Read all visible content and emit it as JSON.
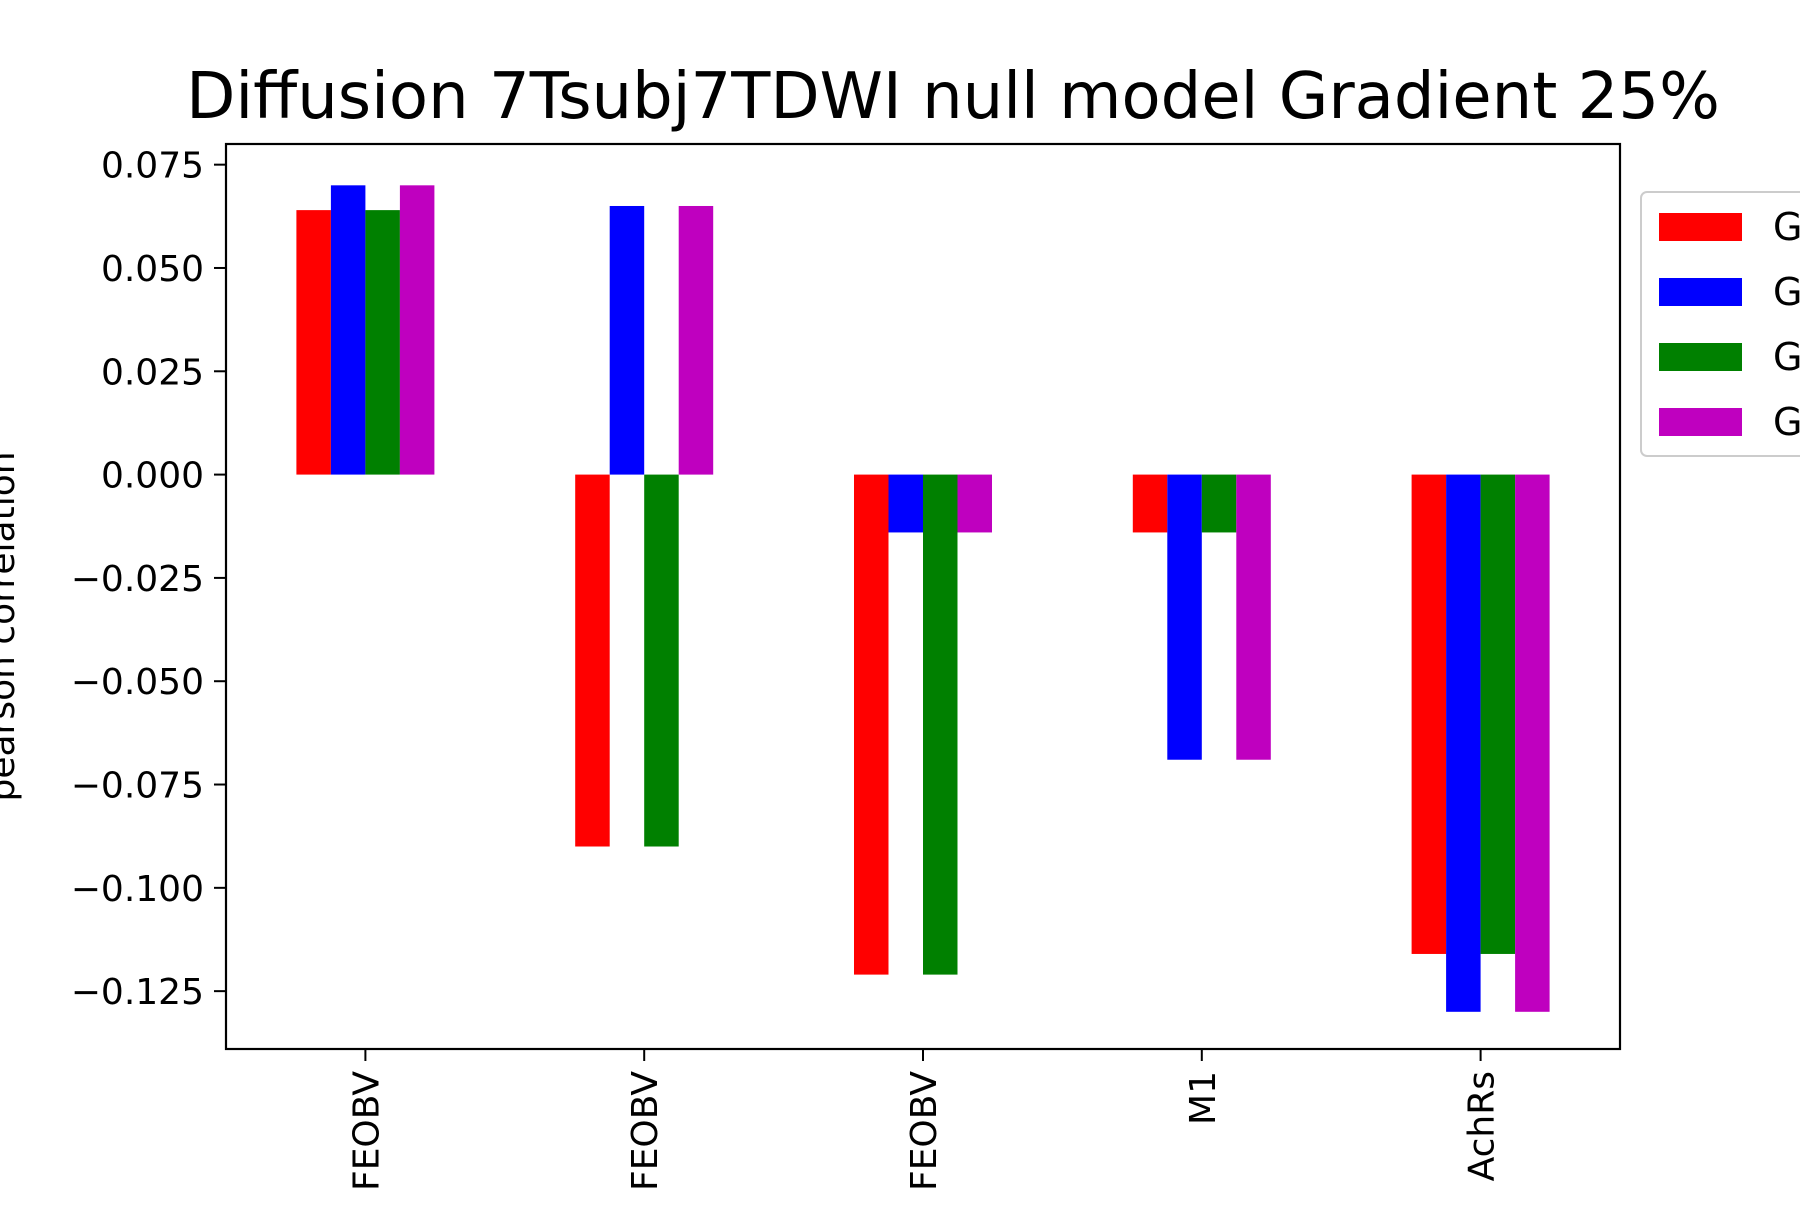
{
  "chart_data": {
    "type": "bar",
    "title": "Diffusion 7Tsubj7TDWI null model Gradient 25%",
    "xlabel": "",
    "ylabel": "pearson correlation",
    "categories": [
      "FEOBV",
      "FEOBV",
      "FEOBV",
      "M1",
      "AchRs"
    ],
    "series": [
      {
        "name": "G",
        "color": "#ff0000",
        "values": [
          0.064,
          -0.09,
          -0.121,
          -0.014,
          -0.116
        ]
      },
      {
        "name": "G",
        "color": "#0000ff",
        "values": [
          0.07,
          0.065,
          -0.014,
          -0.069,
          -0.13
        ]
      },
      {
        "name": "G",
        "color": "#008000",
        "values": [
          0.064,
          -0.09,
          -0.121,
          -0.014,
          -0.116
        ]
      },
      {
        "name": "G",
        "color": "#bf00bf",
        "values": [
          0.07,
          0.065,
          -0.014,
          -0.069,
          -0.13
        ]
      }
    ],
    "yticks": [
      0.075,
      0.05,
      0.025,
      0.0,
      -0.025,
      -0.05,
      -0.075,
      -0.1,
      -0.125
    ],
    "ytick_labels": [
      "0.075",
      "0.050",
      "0.025",
      "0.000",
      "−0.025",
      "−0.050",
      "−0.075",
      "−0.100",
      "−0.125"
    ],
    "ylim": [
      -0.139,
      0.08
    ],
    "grid": false,
    "legend_position": "right, outside plot"
  }
}
